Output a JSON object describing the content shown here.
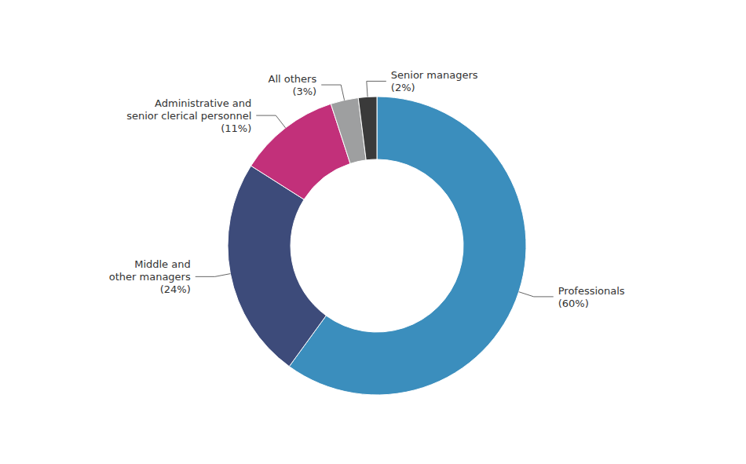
{
  "chart_data": {
    "type": "donut",
    "categories": [
      "Professionals\n(60%)",
      "Middle and\nother managers\n(24%)",
      "Administrative and\nsenior clerical personnel\n(11%)",
      "All others\n(3%)",
      "Senior managers\n(2%)"
    ],
    "values": [
      60,
      24,
      11,
      3,
      2
    ],
    "colors": [
      "#3B8EBD",
      "#3D4B7A",
      "#C2307A",
      "#9E9FA0",
      "#3A3A3A"
    ]
  }
}
